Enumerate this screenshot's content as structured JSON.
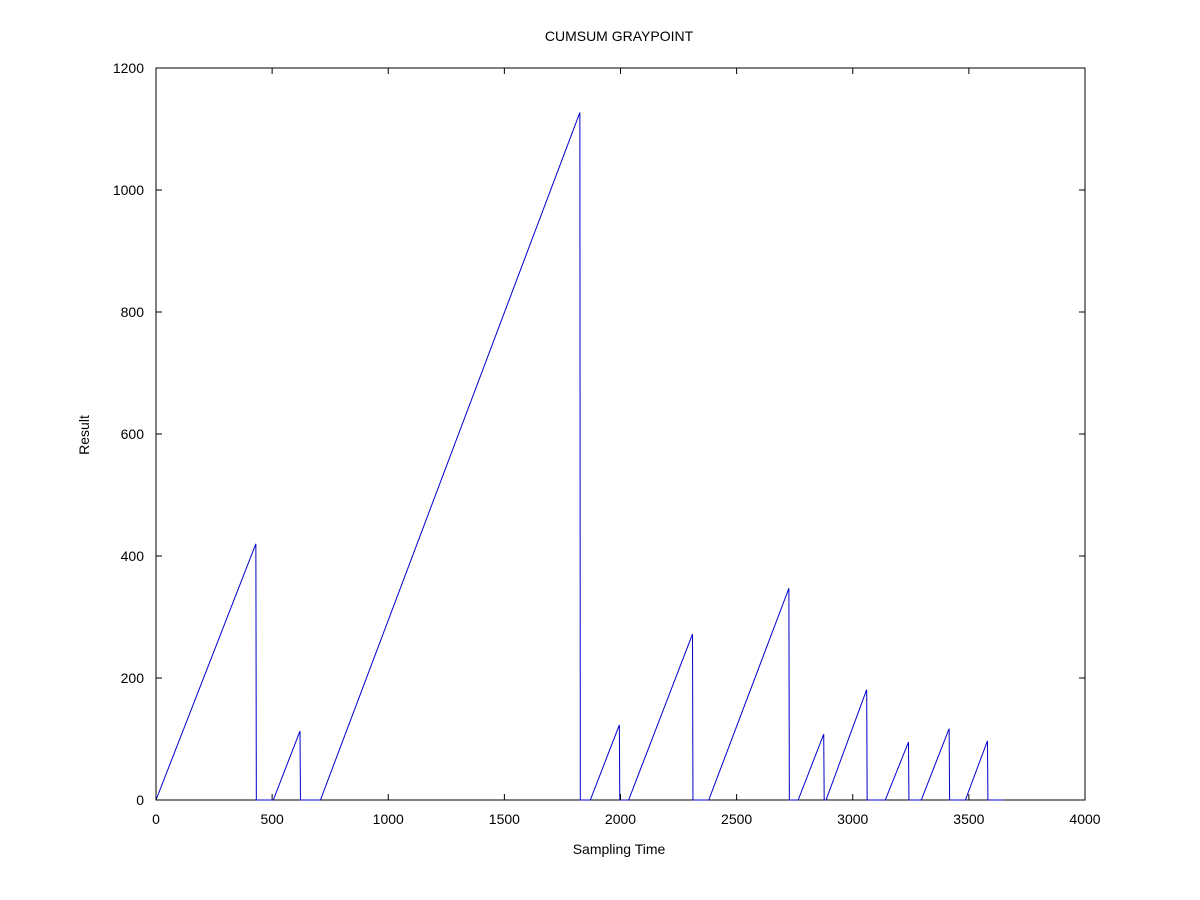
{
  "chart_data": {
    "type": "line",
    "title": "CUMSUM GRAYPOINT",
    "xlabel": "Sampling Time",
    "ylabel": "Result",
    "xlim": [
      0,
      4000
    ],
    "ylim": [
      0,
      1200
    ],
    "xticks": [
      0,
      500,
      1000,
      1500,
      2000,
      2500,
      3000,
      3500,
      4000
    ],
    "yticks": [
      0,
      200,
      400,
      600,
      800,
      1000,
      1200
    ],
    "grid": false,
    "legend": "none",
    "line_color": "#0000cc",
    "series": [
      {
        "x": [
          0,
          430,
          432,
          505,
          620,
          622,
          708,
          1825,
          1827,
          1870,
          1995,
          1997,
          2035,
          2310,
          2312,
          2380,
          2725,
          2727,
          2765,
          2875,
          2877,
          2885,
          3060,
          3062,
          3140,
          3240,
          3242,
          3295,
          3415,
          3417,
          3485,
          3580,
          3582,
          3650
        ],
        "y": [
          0,
          420,
          0,
          0,
          113,
          0,
          0,
          1127,
          0,
          0,
          123,
          0,
          0,
          272,
          0,
          0,
          347,
          0,
          0,
          108,
          0,
          0,
          181,
          0,
          0,
          95,
          0,
          0,
          117,
          0,
          0,
          97,
          0,
          0
        ]
      }
    ]
  }
}
